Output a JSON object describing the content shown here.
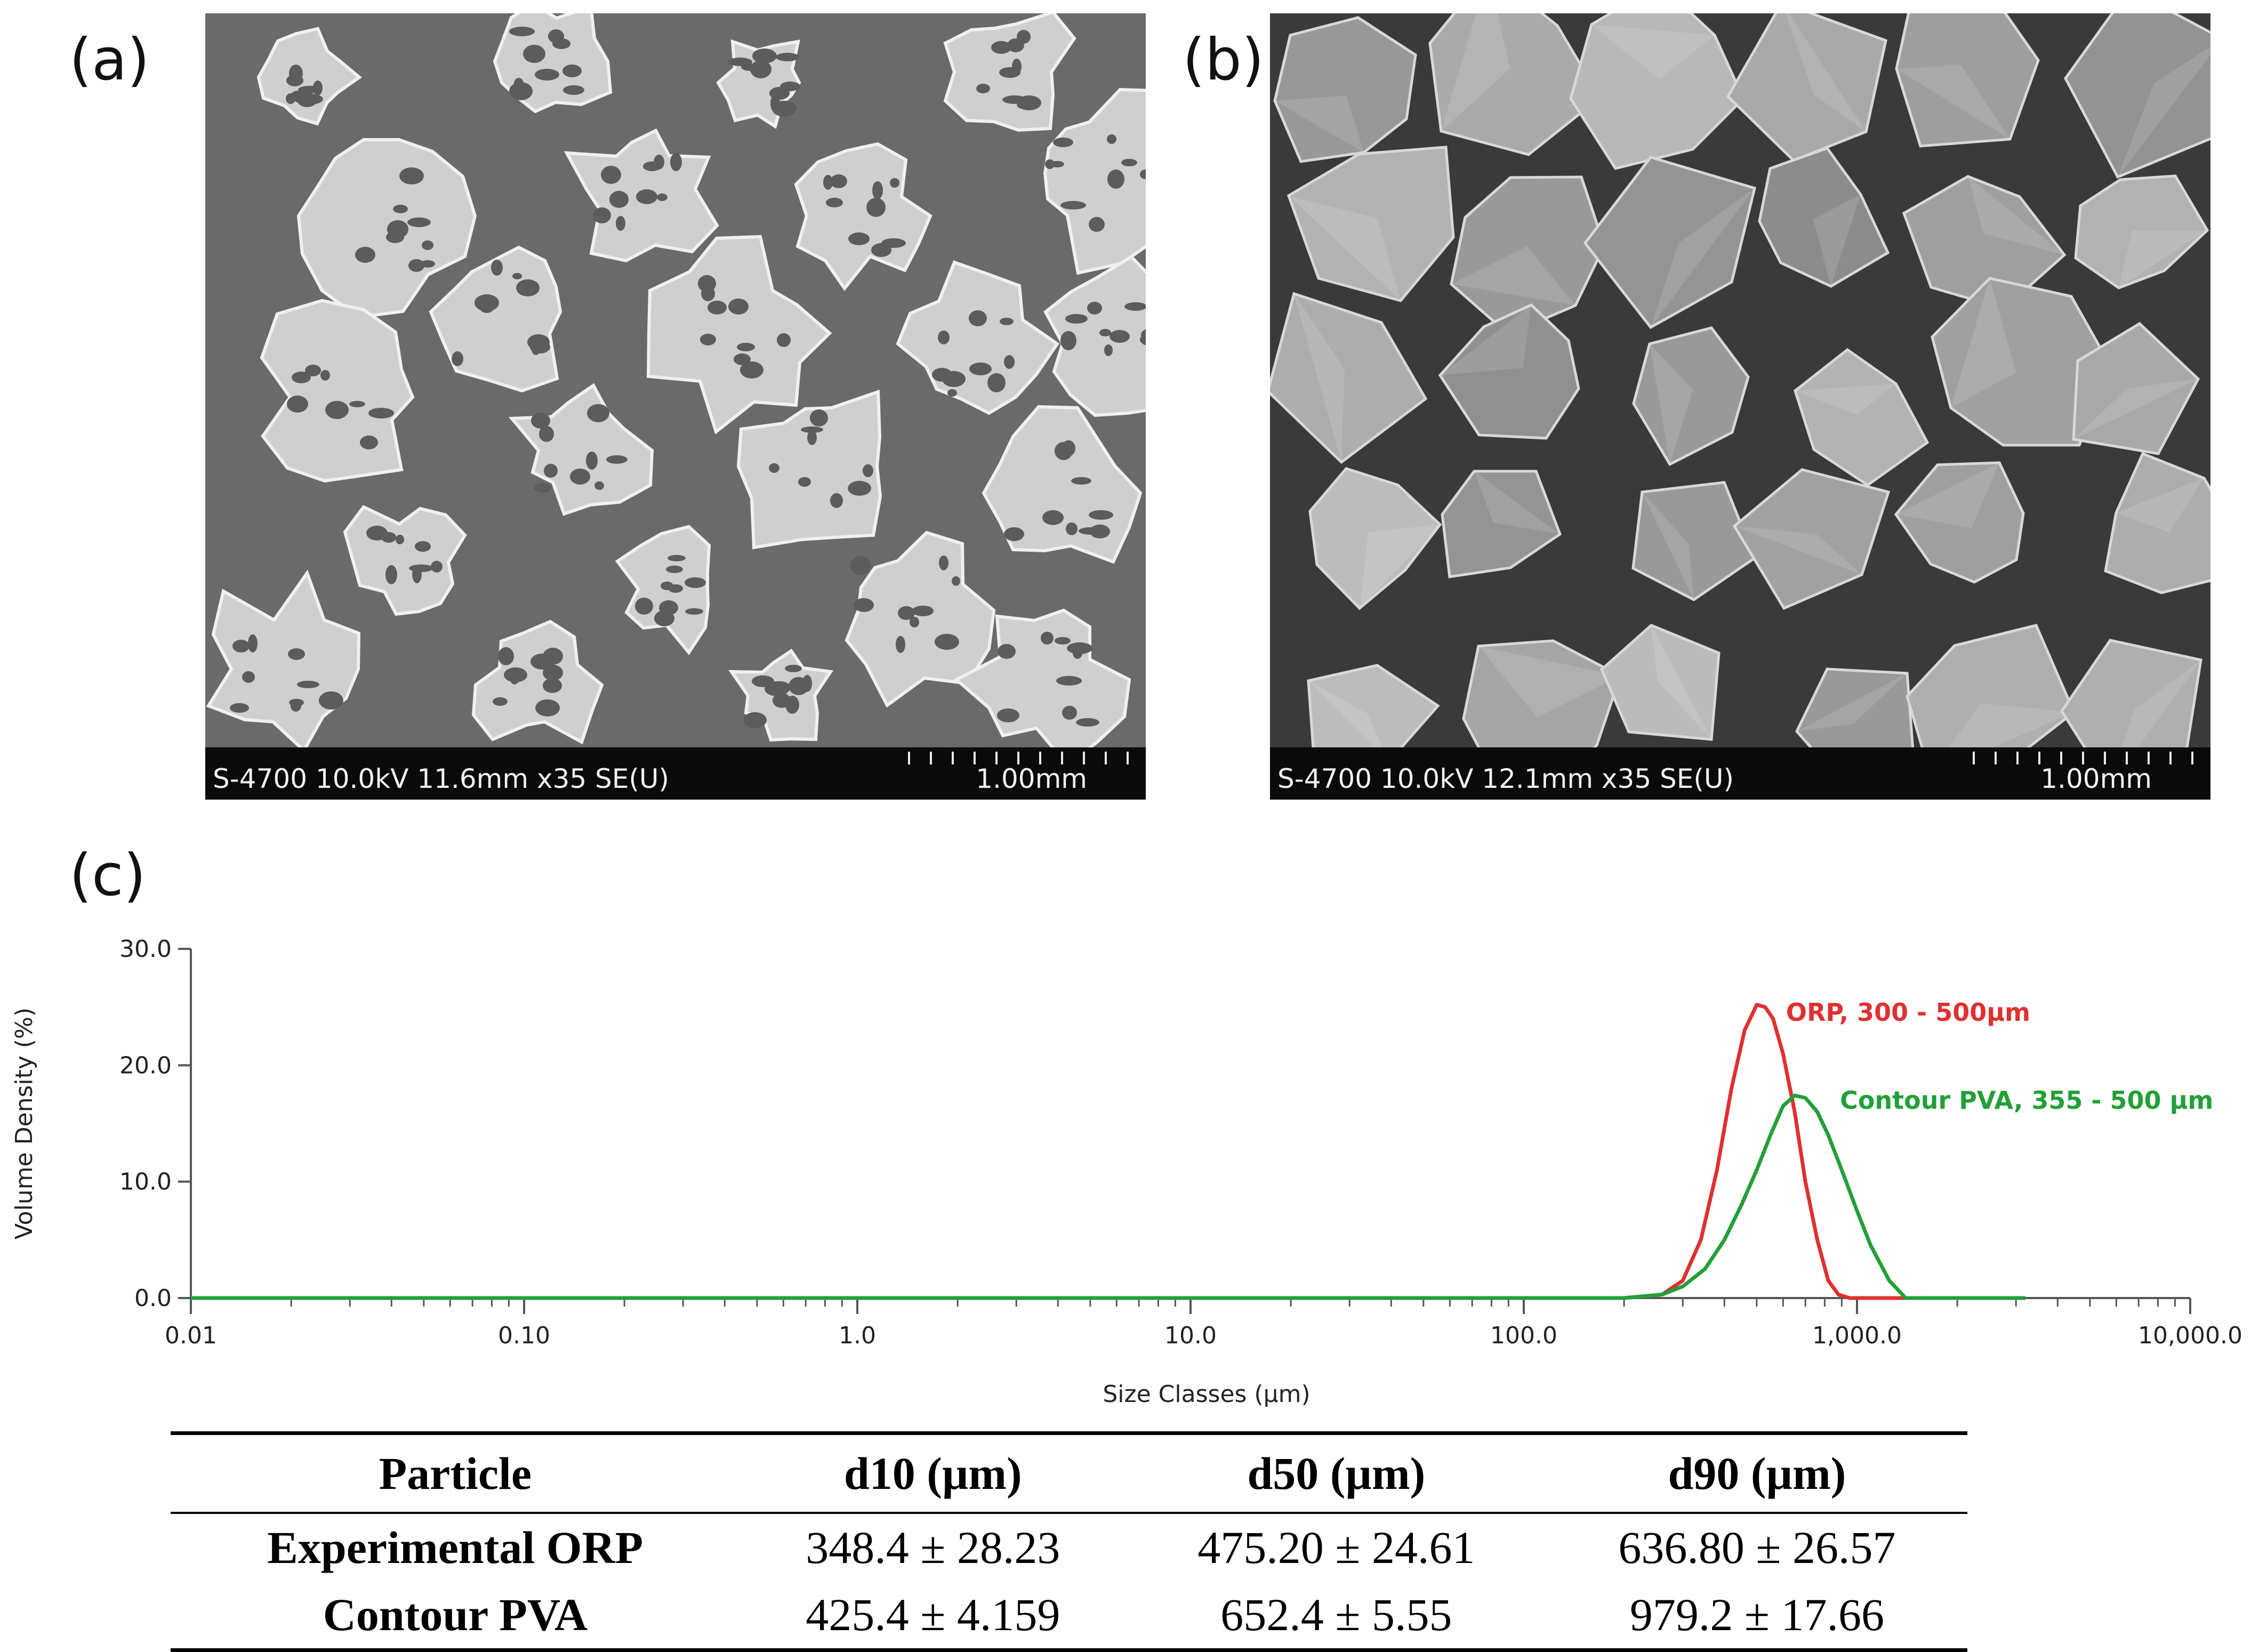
{
  "panels": {
    "a": {
      "label": "(a)",
      "sem_info": "S-4700 10.0kV 11.6mm x35 SE(U)",
      "scale": "1.00mm"
    },
    "b": {
      "label": "(b)",
      "sem_info": "S-4700 10.0kV 12.1mm x35 SE(U)",
      "scale": "1.00mm"
    },
    "c": {
      "label": "(c)"
    }
  },
  "chart_data": {
    "type": "line",
    "xlabel": "Size Classes (µm)",
    "ylabel": "Volume Density (%)",
    "x_scale": "log",
    "xlim": [
      0.01,
      10000
    ],
    "ylim": [
      0,
      30
    ],
    "x_ticks": [
      "0.01",
      "0.10",
      "1.0",
      "10.0",
      "100.0",
      "1,000.0",
      "10,000.0"
    ],
    "y_ticks": [
      "0.0",
      "10.0",
      "20.0",
      "30.0"
    ],
    "grid": false,
    "series": [
      {
        "name": "ORP, 300 - 500µm",
        "color": "#e03030",
        "x": [
          0.01,
          200,
          260,
          300,
          340,
          380,
          420,
          460,
          500,
          530,
          560,
          600,
          650,
          700,
          760,
          820,
          880,
          950,
          1400,
          3200
        ],
        "y": [
          0,
          0,
          0.3,
          1.5,
          5,
          11,
          18,
          23,
          25.2,
          25,
          24,
          21,
          16,
          10,
          5,
          1.5,
          0.3,
          0,
          0,
          0
        ]
      },
      {
        "name": "Contour PVA, 355 - 500 µm",
        "color": "#22a038",
        "x": [
          0.01,
          200,
          260,
          300,
          350,
          400,
          450,
          500,
          550,
          600,
          650,
          700,
          760,
          820,
          900,
          1000,
          1100,
          1250,
          1400,
          3200
        ],
        "y": [
          0,
          0,
          0.3,
          1,
          2.5,
          5,
          8,
          11,
          14,
          16.5,
          17.4,
          17.2,
          16,
          14,
          11,
          7.5,
          4.5,
          1.5,
          0,
          0
        ]
      }
    ]
  },
  "table": {
    "headers": [
      "Particle",
      "d10 (µm)",
      "d50 (µm)",
      "d90 (µm)"
    ],
    "rows": [
      [
        "Experimental ORP",
        "348.4 ± 28.23",
        "475.20 ± 24.61",
        "636.80 ± 26.57"
      ],
      [
        "Contour PVA",
        "425.4 ± 4.159",
        "652.4 ± 5.55",
        "979.2 ± 17.66"
      ]
    ]
  }
}
